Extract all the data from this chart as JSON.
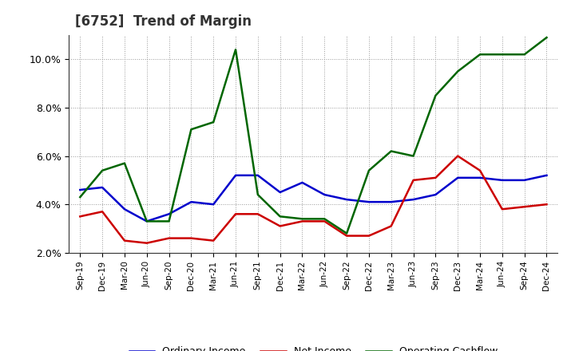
{
  "title": "[6752]  Trend of Margin",
  "x_labels": [
    "Sep-19",
    "Dec-19",
    "Mar-20",
    "Jun-20",
    "Sep-20",
    "Dec-20",
    "Mar-21",
    "Jun-21",
    "Sep-21",
    "Dec-21",
    "Mar-22",
    "Jun-22",
    "Sep-22",
    "Dec-22",
    "Mar-23",
    "Jun-23",
    "Sep-23",
    "Dec-23",
    "Mar-24",
    "Jun-24",
    "Sep-24",
    "Dec-24"
  ],
  "ordinary_income": [
    4.6,
    4.7,
    3.8,
    3.3,
    3.6,
    4.1,
    4.0,
    5.2,
    5.2,
    4.5,
    4.9,
    4.4,
    4.2,
    4.1,
    4.1,
    4.2,
    4.4,
    5.1,
    5.1,
    5.0,
    5.0,
    5.2
  ],
  "net_income": [
    3.5,
    3.7,
    2.5,
    2.4,
    2.6,
    2.6,
    2.5,
    3.6,
    3.6,
    3.1,
    3.3,
    3.3,
    2.7,
    2.7,
    3.1,
    5.0,
    5.1,
    6.0,
    5.4,
    3.8,
    3.9,
    4.0
  ],
  "operating_cashflow": [
    4.3,
    5.4,
    5.7,
    3.3,
    3.3,
    7.1,
    7.4,
    10.4,
    4.4,
    3.5,
    3.4,
    3.4,
    2.8,
    5.4,
    6.2,
    6.0,
    8.5,
    9.5,
    10.2,
    10.2,
    10.2,
    10.9
  ],
  "colors": {
    "ordinary_income": "#0000cc",
    "net_income": "#cc0000",
    "operating_cashflow": "#006600"
  },
  "ylim": [
    2.0,
    11.0
  ],
  "yticks": [
    2.0,
    4.0,
    6.0,
    8.0,
    10.0
  ],
  "background_color": "#ffffff",
  "grid_color": "#999999",
  "title_color": "#333333"
}
